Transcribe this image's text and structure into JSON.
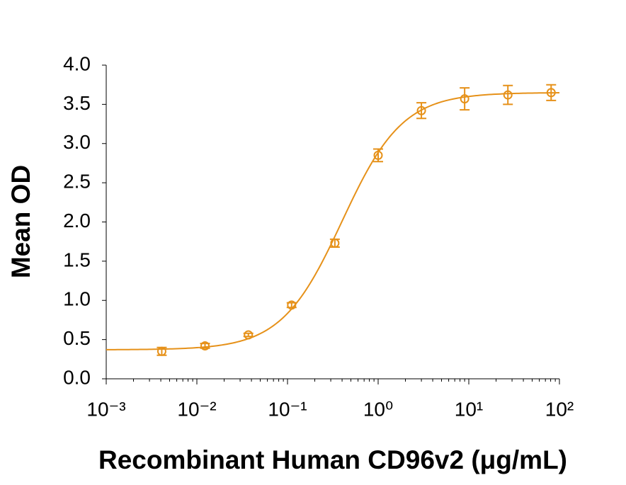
{
  "chart_data": {
    "type": "scatter",
    "x_label": "Recombinant Human CD96v2 (μg/mL)",
    "y_label": "Mean OD",
    "xscale": "log",
    "xlim": [
      0.001,
      100
    ],
    "xticks": [
      {
        "value": 0.001,
        "label": "10⁻³"
      },
      {
        "value": 0.01,
        "label": "10⁻²"
      },
      {
        "value": 0.1,
        "label": "10⁻¹"
      },
      {
        "value": 1,
        "label": "10⁰"
      },
      {
        "value": 10,
        "label": "10¹"
      },
      {
        "value": 100,
        "label": "10²"
      }
    ],
    "ylim": [
      0,
      4
    ],
    "yticks": [
      {
        "value": 0,
        "label": "0.0"
      },
      {
        "value": 0.5,
        "label": "0.5"
      },
      {
        "value": 1,
        "label": "1.0"
      },
      {
        "value": 1.5,
        "label": "1.5"
      },
      {
        "value": 2,
        "label": "2.0"
      },
      {
        "value": 2.5,
        "label": "2.5"
      },
      {
        "value": 3,
        "label": "3.0"
      },
      {
        "value": 3.5,
        "label": "3.5"
      },
      {
        "value": 4,
        "label": "4.0"
      }
    ],
    "color": "#e69119",
    "x": [
      0.0041,
      0.0123,
      0.037,
      0.111,
      0.333,
      1,
      3,
      9,
      27,
      81
    ],
    "values": [
      0.35,
      0.42,
      0.56,
      0.94,
      1.73,
      2.85,
      3.42,
      3.57,
      3.62,
      3.65
    ],
    "errors": [
      0.05,
      0.03,
      0.02,
      0.03,
      0.05,
      0.08,
      0.1,
      0.14,
      0.12,
      0.1
    ],
    "fit": {
      "bottom": 0.37,
      "top": 3.65,
      "ec50": 0.4,
      "hill": 1.3
    }
  }
}
